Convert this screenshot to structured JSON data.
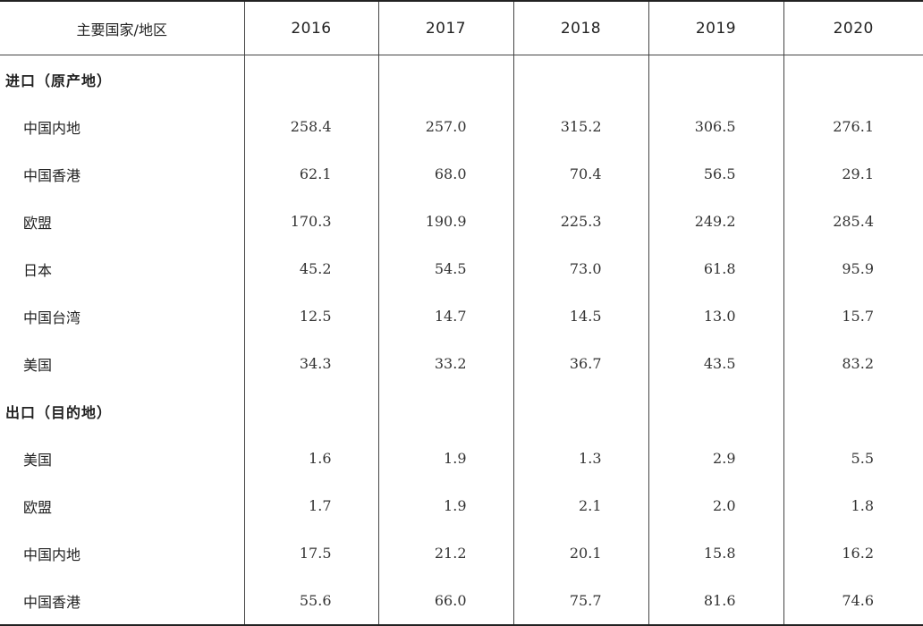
{
  "header": {
    "region_label": "主要国家/地区",
    "years": [
      "2016",
      "2017",
      "2018",
      "2019",
      "2020"
    ]
  },
  "import_section": {
    "title": "进口（原产地）",
    "rows": [
      {
        "name": "中国内地",
        "values": [
          "258.4",
          "257.0",
          "315.2",
          "306.5",
          "276.1"
        ]
      },
      {
        "name": "中国香港",
        "values": [
          "62.1",
          "68.0",
          "70.4",
          "56.5",
          "29.1"
        ]
      },
      {
        "name": "欧盟",
        "values": [
          "170.3",
          "190.9",
          "225.3",
          "249.2",
          "285.4"
        ]
      },
      {
        "name": "日本",
        "values": [
          "45.2",
          "54.5",
          "73.0",
          "61.8",
          "95.9"
        ]
      },
      {
        "name": "中国台湾",
        "values": [
          "12.5",
          "14.7",
          "14.5",
          "13.0",
          "15.7"
        ]
      },
      {
        "name": "美国",
        "values": [
          "34.3",
          "33.2",
          "36.7",
          "43.5",
          "83.2"
        ]
      }
    ]
  },
  "export_section": {
    "title": "出口（目的地）",
    "rows": [
      {
        "name": "美国",
        "values": [
          "1.6",
          "1.9",
          "1.3",
          "2.9",
          "5.5"
        ]
      },
      {
        "name": "欧盟",
        "values": [
          "1.7",
          "1.9",
          "2.1",
          "2.0",
          "1.8"
        ]
      },
      {
        "name": "中国内地",
        "values": [
          "17.5",
          "21.2",
          "20.1",
          "15.8",
          "16.2"
        ]
      },
      {
        "name": "中国香港",
        "values": [
          "55.6",
          "66.0",
          "75.7",
          "81.6",
          "74.6"
        ]
      }
    ]
  }
}
